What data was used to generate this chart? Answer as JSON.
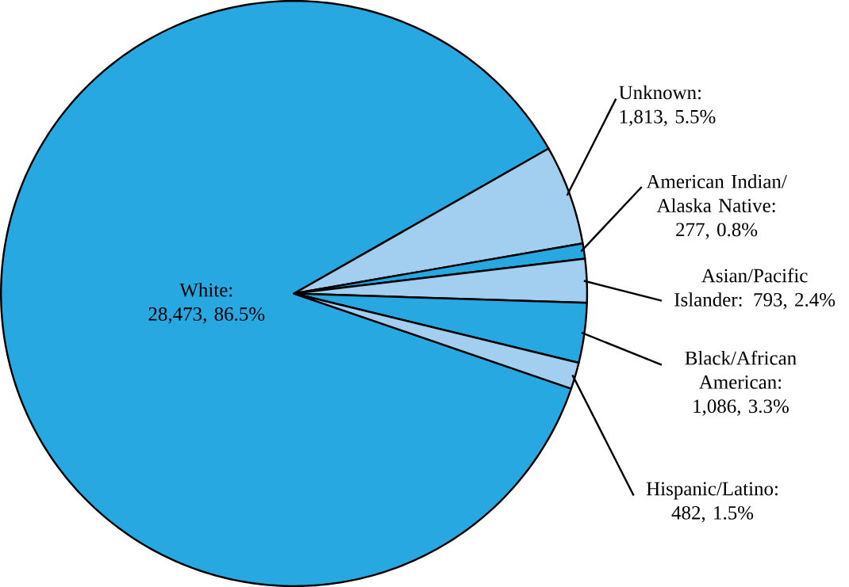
{
  "chart_data": {
    "type": "pie",
    "categories": [
      "White: 28,473, 86.5%",
      "Unknown: 1,813, 5.5%",
      "American Indian/ Alaska Native: 277, 0.8%",
      "Asian/Pacific Islander: 793, 2.4%",
      "Black/African American: 1,086, 3.3%",
      "Hispanic/Latino: 482, 1.5%"
    ],
    "values": [
      28473,
      1813,
      277,
      793,
      1086,
      482
    ],
    "colors": [
      "#27a8e1",
      "#a2cff0",
      "#27a8e1",
      "#a2cff0",
      "#27a8e1",
      "#a2cff0"
    ]
  }
}
